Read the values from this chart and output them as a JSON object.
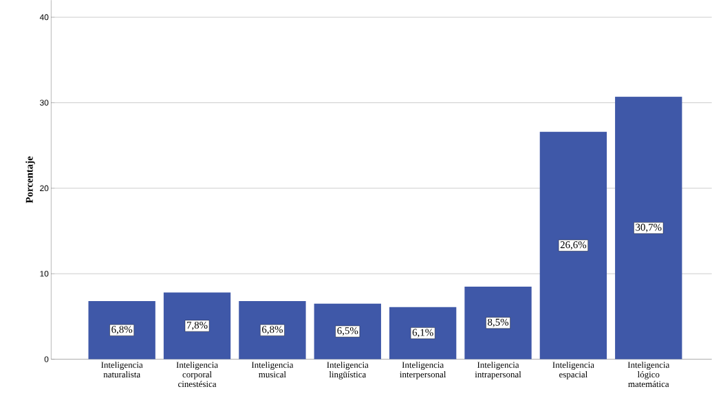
{
  "chart_data": {
    "type": "bar",
    "ylabel": "Porcentaje",
    "categories": [
      "Inteligencia naturalista",
      "Inteligencia corporal cinestésica",
      "Inteligencia musical",
      "Inteligencia lingüística",
      "Inteligencia interpersonal",
      "Inteligencia intrapersonal",
      "Inteligencia espacial",
      "Inteligencia lógico matemática"
    ],
    "values": [
      6.8,
      7.8,
      6.8,
      6.5,
      6.1,
      8.5,
      26.6,
      30.7
    ],
    "value_labels": [
      "6,8%",
      "7,8%",
      "6,8%",
      "6,5%",
      "6,1%",
      "8,5%",
      "26,6%",
      "30,7%"
    ],
    "color": "#3f58a8",
    "ylim": [
      0,
      42
    ],
    "yticks": [
      0,
      10,
      20,
      30,
      40
    ],
    "grid": "y"
  }
}
